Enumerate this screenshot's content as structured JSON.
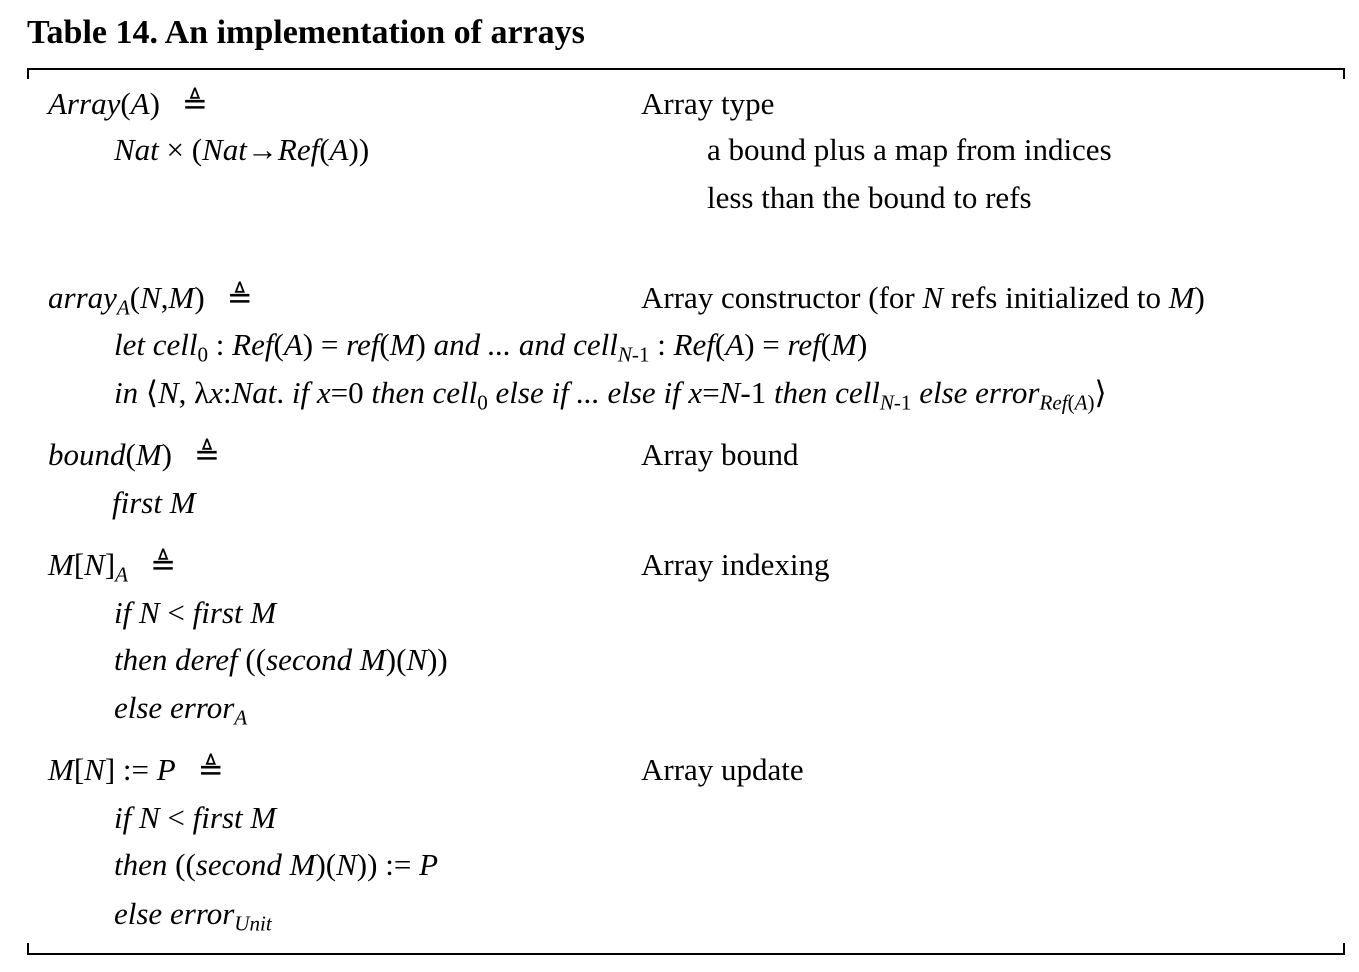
{
  "caption": "Table 14. An implementation of arrays",
  "defeq_symbol": "≜",
  "entries": [
    {
      "def": {
        "name": "Array",
        "args": "(A)"
      },
      "body": [
        "Nat × (Nat→Ref(A))"
      ],
      "comment": [
        "Array type",
        "a bound plus a map from indices",
        "less than the bound to refs"
      ]
    },
    {
      "def": {
        "name": "array",
        "sub": "A",
        "args": "(N,M)"
      },
      "body": [
        "let cell0 : Ref(A) = ref(M) and ... and cellN-1 : Ref(A) = ref(M)",
        "in ⟨N, λx:Nat. if x=0 then cell0 else if ... else if x=N-1 then cellN-1 else errorRef(A)⟩"
      ],
      "comment": [
        "Array constructor (for N refs initialized to M)"
      ]
    },
    {
      "def": {
        "name": "bound",
        "args": "(M)"
      },
      "body": [
        "first M"
      ],
      "comment": [
        "Array bound"
      ]
    },
    {
      "def": {
        "name": "M[N]",
        "sub": "A"
      },
      "body": [
        "if N < first M",
        "then deref ((second M)(N))",
        "else errorA"
      ],
      "comment": [
        "Array indexing"
      ]
    },
    {
      "def": {
        "name": "M[N] := P"
      },
      "body": [
        "if N < first M",
        "then ((second M)(N)) := P",
        "else errorUnit"
      ],
      "comment": [
        "Array update"
      ]
    }
  ],
  "tokens": {
    "lt": "<",
    "assign": ":=",
    "colon": ":",
    "equals": "=",
    "times": "×",
    "arrow": "→",
    "langle": "⟨",
    "rangle": "⟩",
    "lambda": "λ",
    "ellipsis": "...",
    "zero": "0",
    "one": "1",
    "minus": "-",
    "comma": ",",
    "dot": ".",
    "lparen": "(",
    "rparen": ")",
    "lbracket": "[",
    "rbracket": "]",
    "and": "and",
    "let": "let",
    "in": "in",
    "if": "if",
    "then": "then",
    "else": "else",
    "first": "first",
    "second": "second",
    "deref": "deref",
    "ref": "ref",
    "error": "error",
    "cell": "cell",
    "Ref": "Ref",
    "Nat": "Nat",
    "Unit": "Unit",
    "A": "A",
    "M": "M",
    "N": "N",
    "P": "P",
    "x": "x",
    "Array": "Array",
    "array": "array",
    "bound": "bound",
    "comment_ctor_pre": "Array constructor (for ",
    "comment_ctor_mid": " refs initialized to ",
    "comment_ctor_post": ")"
  }
}
